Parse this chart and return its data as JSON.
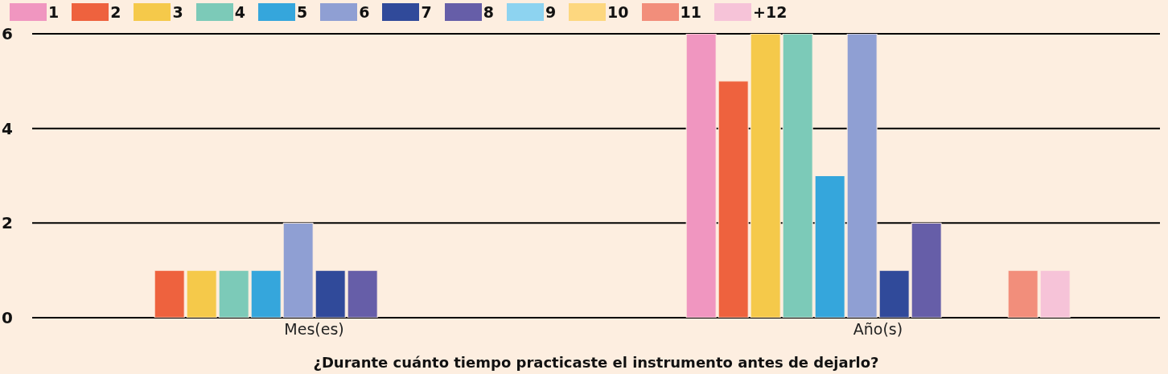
{
  "chart_data": {
    "type": "bar",
    "xlabel": "¿Durante cuánto tiempo practicaste el instrumento antes de dejarlo?",
    "categories": [
      "Mes(es)",
      "Año(s)"
    ],
    "series": [
      {
        "name": "1",
        "color": "#f096c0",
        "values": [
          0,
          6
        ]
      },
      {
        "name": "2",
        "color": "#ee623e",
        "values": [
          1,
          5
        ]
      },
      {
        "name": "3",
        "color": "#f5c94a",
        "values": [
          1,
          6
        ]
      },
      {
        "name": "4",
        "color": "#7ccab8",
        "values": [
          1,
          6
        ]
      },
      {
        "name": "5",
        "color": "#35a6dc",
        "values": [
          1,
          3
        ]
      },
      {
        "name": "6",
        "color": "#8f9fd3",
        "values": [
          2,
          6
        ]
      },
      {
        "name": "7",
        "color": "#304a9a",
        "values": [
          1,
          1
        ]
      },
      {
        "name": "8",
        "color": "#665ea8",
        "values": [
          1,
          2
        ]
      },
      {
        "name": "9",
        "color": "#8dd3f0",
        "values": [
          0,
          0
        ]
      },
      {
        "name": "10",
        "color": "#fdd77f",
        "values": [
          0,
          0
        ]
      },
      {
        "name": "11",
        "color": "#f28e7b",
        "values": [
          0,
          1
        ]
      },
      {
        "name": "+12",
        "color": "#f6c3d8",
        "values": [
          0,
          1
        ]
      }
    ],
    "ylim": [
      0,
      6
    ],
    "yticks": [
      0,
      2,
      4,
      6
    ],
    "grid": "y",
    "legend": "top left"
  }
}
